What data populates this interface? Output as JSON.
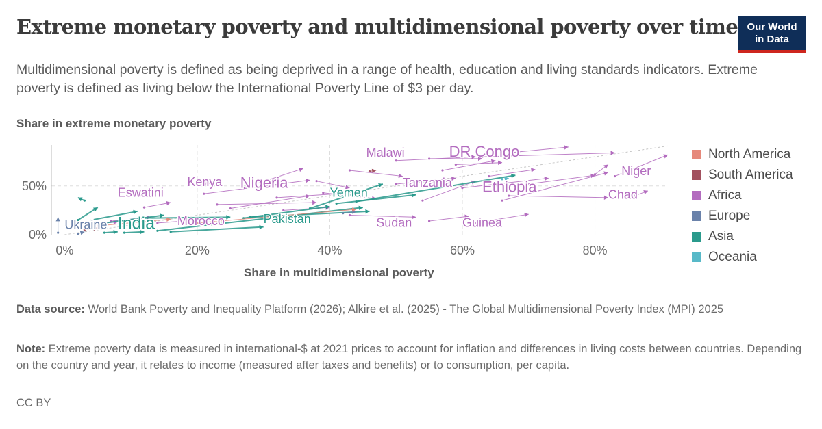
{
  "header": {
    "title": "Extreme monetary poverty and multidimensional poverty over time",
    "subtitle": "Multidimensional poverty is defined as being deprived in a range of health, education and living standards indicators. Extreme poverty is defined as living below the International Poverty Line of $3 per day.",
    "logo_line1": "Our World",
    "logo_line2": "in Data"
  },
  "footer": {
    "source_label": "Data source:",
    "source_text": "World Bank Poverty and Inequality Platform (2026); Alkire et al. (2025) - The Global Multidimensional Poverty Index (MPI) 2025",
    "note_label": "Note:",
    "note_text": "Extreme poverty data is measured in international-$ at 2021 prices to account for inflation and differences in living costs between countries. Depending on the country and year, it relates to income (measured after taxes and benefits) or to consumption, per capita.",
    "license": "CC BY"
  },
  "colors": {
    "North America": "#e6897b",
    "South America": "#a2515f",
    "Africa": "#b36cbf",
    "Europe": "#6a82aa",
    "Asia": "#2a9a8c",
    "Oceania": "#58b9c8"
  },
  "chart_data": {
    "type": "scatter",
    "title": "",
    "xlabel": "Share in multidimensional poverty",
    "ylabel": "Share in extreme monetary poverty",
    "xlim": [
      -2,
      91
    ],
    "ylim": [
      0,
      92
    ],
    "x_ticks": [
      {
        "value": 0,
        "label": "0%"
      },
      {
        "value": 20,
        "label": "20%"
      },
      {
        "value": 40,
        "label": "40%"
      },
      {
        "value": 60,
        "label": "60%"
      },
      {
        "value": 80,
        "label": "80%"
      }
    ],
    "y_ticks": [
      {
        "value": 0,
        "label": "0%"
      },
      {
        "value": 50,
        "label": "50%"
      }
    ],
    "grid": true,
    "legend_position": "right",
    "legend": [
      "North America",
      "South America",
      "Africa",
      "Europe",
      "Asia",
      "Oceania"
    ],
    "diagonal_reference": true,
    "series": [
      {
        "region": "Africa",
        "from": [
          67,
          84
        ],
        "to": [
          76,
          90
        ]
      },
      {
        "region": "Africa",
        "from": [
          63,
          80
        ],
        "to": [
          83,
          84
        ]
      },
      {
        "region": "Africa",
        "from": [
          50,
          76
        ],
        "to": [
          62,
          80
        ]
      },
      {
        "region": "Africa",
        "from": [
          57,
          66
        ],
        "to": [
          65,
          76
        ]
      },
      {
        "region": "Africa",
        "from": [
          83,
          60
        ],
        "to": [
          91,
          82
        ]
      },
      {
        "region": "Africa",
        "from": [
          80,
          62
        ],
        "to": [
          82,
          72
        ]
      },
      {
        "region": "Africa",
        "from": [
          70,
          52
        ],
        "to": [
          80,
          61
        ]
      },
      {
        "region": "Africa",
        "from": [
          66,
          35
        ],
        "to": [
          82,
          64
        ]
      },
      {
        "region": "Africa",
        "from": [
          67,
          40
        ],
        "to": [
          82,
          38
        ]
      },
      {
        "region": "Africa",
        "from": [
          86,
          40
        ],
        "to": [
          88,
          45
        ]
      },
      {
        "region": "Africa",
        "from": [
          64,
          60
        ],
        "to": [
          71,
          67
        ]
      },
      {
        "region": "Africa",
        "from": [
          60,
          48
        ],
        "to": [
          73,
          58
        ]
      },
      {
        "region": "Africa",
        "from": [
          54,
          35
        ],
        "to": [
          62,
          55
        ]
      },
      {
        "region": "Africa",
        "from": [
          62,
          12
        ],
        "to": [
          70,
          21
        ]
      },
      {
        "region": "Africa",
        "from": [
          55,
          14
        ],
        "to": [
          61,
          19
        ]
      },
      {
        "region": "Africa",
        "from": [
          43,
          20
        ],
        "to": [
          53,
          18
        ]
      },
      {
        "region": "Africa",
        "from": [
          39,
          43
        ],
        "to": [
          47,
          37
        ]
      },
      {
        "region": "Africa",
        "from": [
          50,
          52
        ],
        "to": [
          59,
          58
        ]
      },
      {
        "region": "Africa",
        "from": [
          38,
          55
        ],
        "to": [
          43,
          48
        ]
      },
      {
        "region": "Africa",
        "from": [
          27,
          48
        ],
        "to": [
          36,
          68
        ]
      },
      {
        "region": "Africa",
        "from": [
          21,
          42
        ],
        "to": [
          37,
          56
        ]
      },
      {
        "region": "Africa",
        "from": [
          23,
          31
        ],
        "to": [
          38,
          33
        ]
      },
      {
        "region": "Africa",
        "from": [
          25,
          27
        ],
        "to": [
          37,
          40
        ]
      },
      {
        "region": "Africa",
        "from": [
          32,
          38
        ],
        "to": [
          41,
          42
        ]
      },
      {
        "region": "Africa",
        "from": [
          20,
          50
        ],
        "to": [
          22,
          53
        ]
      },
      {
        "region": "Africa",
        "from": [
          10,
          40
        ],
        "to": [
          12,
          42
        ]
      },
      {
        "region": "Africa",
        "from": [
          12,
          28
        ],
        "to": [
          16,
          33
        ]
      },
      {
        "region": "Africa",
        "from": [
          7,
          14
        ],
        "to": [
          13,
          18
        ]
      },
      {
        "region": "Africa",
        "from": [
          6,
          12
        ],
        "to": [
          8,
          13
        ]
      },
      {
        "region": "Africa",
        "from": [
          14,
          12
        ],
        "to": [
          18,
          14
        ]
      },
      {
        "region": "Africa",
        "from": [
          55,
          78
        ],
        "to": [
          63,
          78
        ]
      },
      {
        "region": "Africa",
        "from": [
          43,
          66
        ],
        "to": [
          51,
          60
        ]
      },
      {
        "region": "Africa",
        "from": [
          59,
          72
        ],
        "to": [
          66,
          74
        ]
      },
      {
        "region": "Africa",
        "from": [
          33,
          25
        ],
        "to": [
          40,
          28
        ]
      },
      {
        "region": "Asia",
        "from": [
          3,
          35
        ],
        "to": [
          2,
          38
        ]
      },
      {
        "region": "Asia",
        "from": [
          2,
          15
        ],
        "to": [
          5,
          28
        ]
      },
      {
        "region": "Asia",
        "from": [
          4,
          15
        ],
        "to": [
          11,
          24
        ]
      },
      {
        "region": "Asia",
        "from": [
          6,
          12
        ],
        "to": [
          15,
          20
        ]
      },
      {
        "region": "Asia",
        "from": [
          14,
          4
        ],
        "to": [
          45,
          28
        ]
      },
      {
        "region": "Asia",
        "from": [
          27,
          17
        ],
        "to": [
          40,
          29
        ]
      },
      {
        "region": "Asia",
        "from": [
          37,
          27
        ],
        "to": [
          48,
          52
        ]
      },
      {
        "region": "Asia",
        "from": [
          16,
          3
        ],
        "to": [
          30,
          8
        ]
      },
      {
        "region": "Asia",
        "from": [
          6,
          2
        ],
        "to": [
          8,
          3
        ]
      },
      {
        "region": "Asia",
        "from": [
          9,
          2
        ],
        "to": [
          12,
          3
        ]
      },
      {
        "region": "Asia",
        "from": [
          28,
          18
        ],
        "to": [
          46,
          24
        ]
      },
      {
        "region": "Asia",
        "from": [
          41,
          32
        ],
        "to": [
          53,
          41
        ]
      },
      {
        "region": "Asia",
        "from": [
          44,
          34
        ],
        "to": [
          68,
          61
        ]
      },
      {
        "region": "Asia",
        "from": [
          12,
          17
        ],
        "to": [
          25,
          18
        ]
      },
      {
        "region": "Europe",
        "from": [
          -1,
          2
        ],
        "to": [
          -1,
          18
        ]
      },
      {
        "region": "Europe",
        "from": [
          2,
          1
        ],
        "to": [
          3,
          3
        ]
      },
      {
        "region": "Europe",
        "from": [
          42,
          22
        ],
        "to": [
          44,
          24
        ]
      },
      {
        "region": "North America",
        "from": [
          20,
          12
        ],
        "to": [
          44,
          26
        ]
      },
      {
        "region": "North America",
        "from": [
          5,
          9
        ],
        "to": [
          16,
          16
        ]
      },
      {
        "region": "South America",
        "from": [
          46,
          65
        ],
        "to": [
          47,
          66
        ]
      },
      {
        "region": "South America",
        "from": [
          3,
          5
        ],
        "to": [
          5,
          7
        ]
      },
      {
        "region": "Oceania",
        "from": [
          66,
          57
        ],
        "to": [
          67,
          58
        ]
      }
    ],
    "labels": [
      {
        "text": "Malawi",
        "x": 45.5,
        "y": 80,
        "region": "Africa",
        "size": "m"
      },
      {
        "text": "DR Congo",
        "x": 58,
        "y": 80,
        "region": "Africa",
        "size": "l"
      },
      {
        "text": "Kenya",
        "x": 18.5,
        "y": 50,
        "region": "Africa",
        "size": "m"
      },
      {
        "text": "Nigeria",
        "x": 26.5,
        "y": 48,
        "region": "Africa",
        "size": "l"
      },
      {
        "text": "Tanzania",
        "x": 51,
        "y": 49,
        "region": "Africa",
        "size": "m"
      },
      {
        "text": "Eswatini",
        "x": 8,
        "y": 39,
        "region": "Africa",
        "size": "m"
      },
      {
        "text": "Ethiopia",
        "x": 63,
        "y": 44,
        "region": "Africa",
        "size": "l"
      },
      {
        "text": "Niger",
        "x": 84,
        "y": 61,
        "region": "Africa",
        "size": "m"
      },
      {
        "text": "Chad",
        "x": 82,
        "y": 37,
        "region": "Africa",
        "size": "m"
      },
      {
        "text": "Sudan",
        "x": 47,
        "y": 8,
        "region": "Africa",
        "size": "m"
      },
      {
        "text": "Guinea",
        "x": 60,
        "y": 8,
        "region": "Africa",
        "size": "m"
      },
      {
        "text": "Morocco",
        "x": 17,
        "y": 10,
        "region": "Africa",
        "size": "m"
      },
      {
        "text": "Yemen",
        "x": 40,
        "y": 39,
        "region": "Asia",
        "size": "m"
      },
      {
        "text": "Pakistan",
        "x": 30,
        "y": 12,
        "region": "Asia",
        "size": "m"
      },
      {
        "text": "India",
        "x": 8,
        "y": 6,
        "region": "Asia",
        "size": "xl"
      },
      {
        "text": "Ukraine",
        "x": 0,
        "y": 6,
        "region": "Europe",
        "size": "m"
      }
    ]
  }
}
